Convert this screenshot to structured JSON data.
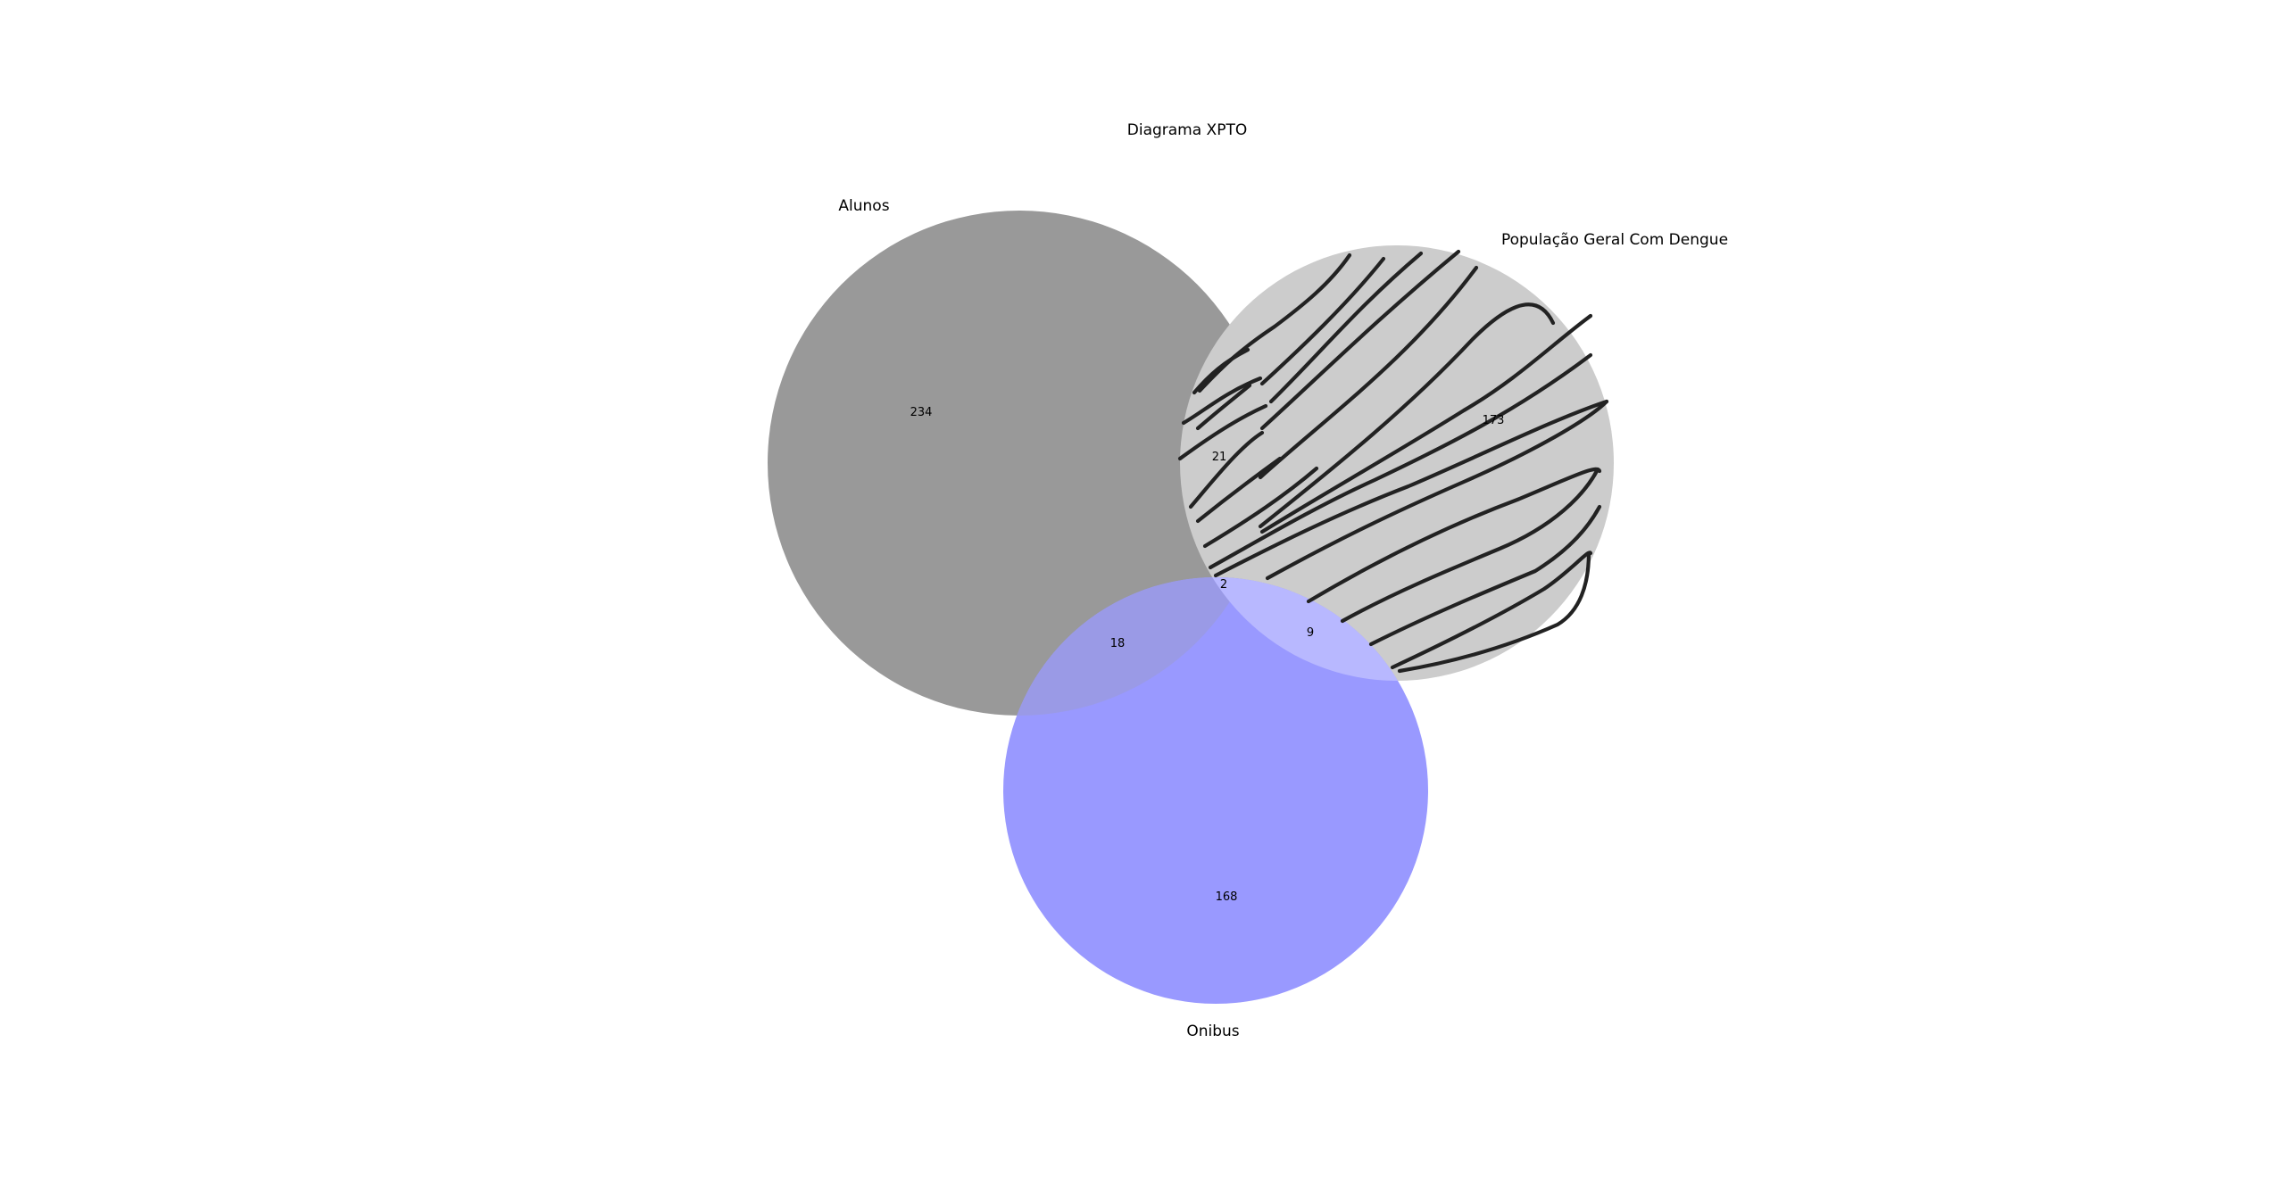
{
  "diagram": {
    "title": "Diagrama XPTO",
    "sets": [
      {
        "id": "alunos",
        "label": "Alunos",
        "color": "#999999",
        "pattern": "solid"
      },
      {
        "id": "dengue",
        "label": "População Geral Com Dengue",
        "color": "#cccccc",
        "pattern": "diagonal-hatch"
      },
      {
        "id": "onibus",
        "label": "Onibus",
        "color": "#9999ff",
        "pattern": "solid"
      }
    ],
    "regions": {
      "alunos_only": "234",
      "dengue_only": "173",
      "onibus_only": "168",
      "alunos_dengue": "21",
      "alunos_onibus": "18",
      "dengue_onibus": "9",
      "all_three": "2"
    },
    "overlap_colors": {
      "alunos_onibus": "#9a9ae6",
      "dengue_onibus": "#b8b8ff"
    },
    "hatch_color": "#222222"
  }
}
